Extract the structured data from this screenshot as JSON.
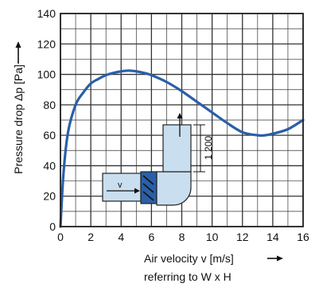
{
  "chart_data": {
    "type": "line",
    "xlabel": "Air velocity v [m/s]",
    "xlabel_sub": "referring to W x H",
    "ylabel": "Pressure drop Δp [Pa]",
    "xlim": [
      0,
      16
    ],
    "ylim": [
      0,
      140
    ],
    "x_ticks": [
      0,
      2,
      4,
      6,
      8,
      10,
      12,
      14,
      16
    ],
    "y_ticks": [
      0,
      20,
      40,
      60,
      80,
      100,
      120,
      140
    ],
    "grid": true,
    "series": [
      {
        "color": "#2a5fa8",
        "x": [
          0,
          0.2,
          0.5,
          1,
          1.5,
          2,
          2.5,
          3,
          3.5,
          4,
          4.5,
          5,
          5.5,
          6,
          7,
          8,
          9,
          10,
          11,
          12,
          13,
          13.5,
          14,
          15,
          16
        ],
        "y": [
          0,
          35,
          62,
          80,
          88,
          94,
          97,
          99.5,
          101,
          102,
          102.5,
          102,
          101,
          99.5,
          95,
          89,
          82,
          75,
          68,
          62,
          60,
          60,
          61,
          64,
          70
        ]
      }
    ],
    "annotations": {
      "inset_dimension": "1 200",
      "inset_flow_label": "v"
    }
  }
}
